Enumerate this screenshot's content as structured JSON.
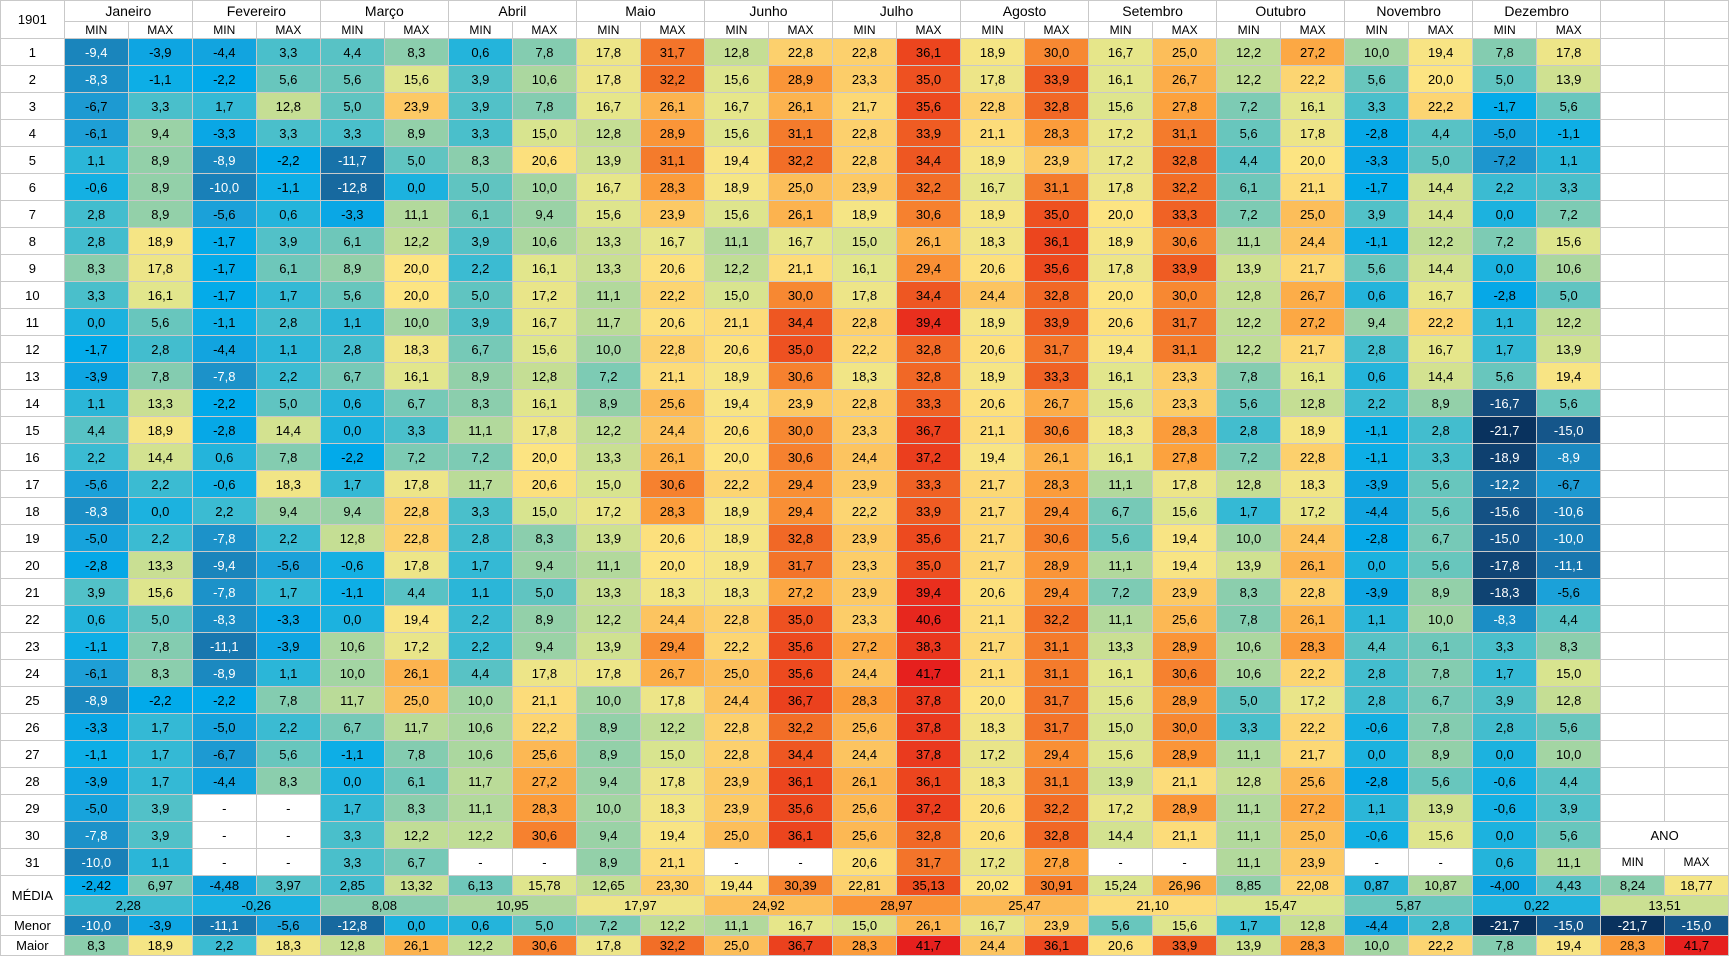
{
  "sheet": {
    "year_label": "1901",
    "months": [
      "Janeiro",
      "Fevereiro",
      "Março",
      "Abril",
      "Maio",
      "Junho",
      "Julho",
      "Agosto",
      "Setembro",
      "Outubro",
      "Novembro",
      "Dezembro"
    ],
    "min_label": "MIN",
    "max_label": "MAX",
    "day_numbers": [
      "1",
      "2",
      "3",
      "4",
      "5",
      "6",
      "7",
      "8",
      "9",
      "10",
      "11",
      "12",
      "13",
      "14",
      "15",
      "16",
      "17",
      "18",
      "19",
      "20",
      "21",
      "22",
      "23",
      "24",
      "25",
      "26",
      "27",
      "28",
      "29",
      "30",
      "31"
    ],
    "rows": [
      [
        "-9,4",
        "-3,9",
        "-4,4",
        "3,3",
        "4,4",
        "8,3",
        "0,6",
        "7,8",
        "17,8",
        "31,7",
        "12,8",
        "22,8",
        "22,8",
        "36,1",
        "18,9",
        "30,0",
        "16,7",
        "25,0",
        "12,2",
        "27,2",
        "10,0",
        "19,4",
        "7,8",
        "17,8"
      ],
      [
        "-8,3",
        "-1,1",
        "-2,2",
        "5,6",
        "5,6",
        "15,6",
        "3,9",
        "10,6",
        "17,8",
        "32,2",
        "15,6",
        "28,9",
        "23,3",
        "35,0",
        "17,8",
        "33,9",
        "16,1",
        "26,7",
        "12,2",
        "22,2",
        "5,6",
        "20,0",
        "5,0",
        "13,9"
      ],
      [
        "-6,7",
        "3,3",
        "1,7",
        "12,8",
        "5,0",
        "23,9",
        "3,9",
        "7,8",
        "16,7",
        "26,1",
        "16,7",
        "26,1",
        "21,7",
        "35,6",
        "22,8",
        "32,8",
        "15,6",
        "27,8",
        "7,2",
        "16,1",
        "3,3",
        "22,2",
        "-1,7",
        "5,6"
      ],
      [
        "-6,1",
        "9,4",
        "-3,3",
        "3,3",
        "3,3",
        "8,9",
        "3,3",
        "15,0",
        "12,8",
        "28,9",
        "15,6",
        "31,1",
        "22,8",
        "33,9",
        "21,1",
        "28,3",
        "17,2",
        "31,1",
        "5,6",
        "17,8",
        "-2,8",
        "4,4",
        "-5,0",
        "-1,1"
      ],
      [
        "1,1",
        "8,9",
        "-8,9",
        "-2,2",
        "-11,7",
        "5,0",
        "8,3",
        "20,6",
        "13,9",
        "31,1",
        "19,4",
        "32,2",
        "22,8",
        "34,4",
        "18,9",
        "23,9",
        "17,2",
        "32,8",
        "4,4",
        "20,0",
        "-3,3",
        "5,0",
        "-7,2",
        "1,1"
      ],
      [
        "-0,6",
        "8,9",
        "-10,0",
        "-1,1",
        "-12,8",
        "0,0",
        "5,0",
        "10,0",
        "16,7",
        "28,3",
        "18,9",
        "25,0",
        "23,9",
        "32,2",
        "16,7",
        "31,1",
        "17,8",
        "32,2",
        "6,1",
        "21,1",
        "-1,7",
        "14,4",
        "2,2",
        "3,3"
      ],
      [
        "2,8",
        "8,9",
        "-5,6",
        "0,6",
        "-3,3",
        "11,1",
        "6,1",
        "9,4",
        "15,6",
        "23,9",
        "15,6",
        "26,1",
        "18,9",
        "30,6",
        "18,9",
        "35,0",
        "20,0",
        "33,3",
        "7,2",
        "25,0",
        "3,9",
        "14,4",
        "0,0",
        "7,2"
      ],
      [
        "2,8",
        "18,9",
        "-1,7",
        "3,9",
        "6,1",
        "12,2",
        "3,9",
        "10,6",
        "13,3",
        "16,7",
        "11,1",
        "16,7",
        "15,0",
        "26,1",
        "18,3",
        "36,1",
        "18,9",
        "30,6",
        "11,1",
        "24,4",
        "-1,1",
        "12,2",
        "7,2",
        "15,6"
      ],
      [
        "8,3",
        "17,8",
        "-1,7",
        "6,1",
        "8,9",
        "20,0",
        "2,2",
        "16,1",
        "13,3",
        "20,6",
        "12,2",
        "21,1",
        "16,1",
        "29,4",
        "20,6",
        "35,6",
        "17,8",
        "33,9",
        "13,9",
        "21,7",
        "5,6",
        "14,4",
        "0,0",
        "10,6"
      ],
      [
        "3,3",
        "16,1",
        "-1,7",
        "1,7",
        "5,6",
        "20,0",
        "5,0",
        "17,2",
        "11,1",
        "22,2",
        "15,0",
        "30,0",
        "17,8",
        "34,4",
        "24,4",
        "32,8",
        "20,0",
        "30,0",
        "12,8",
        "26,7",
        "0,6",
        "16,7",
        "-2,8",
        "5,0"
      ],
      [
        "0,0",
        "5,6",
        "-1,1",
        "2,8",
        "1,1",
        "10,0",
        "3,9",
        "16,7",
        "11,7",
        "20,6",
        "21,1",
        "34,4",
        "22,8",
        "39,4",
        "18,9",
        "33,9",
        "20,6",
        "31,7",
        "12,2",
        "27,2",
        "9,4",
        "22,2",
        "1,1",
        "12,2"
      ],
      [
        "-1,7",
        "2,8",
        "-4,4",
        "1,1",
        "2,8",
        "18,3",
        "6,7",
        "15,6",
        "10,0",
        "22,8",
        "20,6",
        "35,0",
        "22,2",
        "32,8",
        "20,6",
        "31,7",
        "19,4",
        "31,1",
        "12,2",
        "21,7",
        "2,8",
        "16,7",
        "1,7",
        "13,9"
      ],
      [
        "-3,9",
        "7,8",
        "-7,8",
        "2,2",
        "6,7",
        "16,1",
        "8,9",
        "12,8",
        "7,2",
        "21,1",
        "18,9",
        "30,6",
        "18,3",
        "32,8",
        "18,9",
        "33,3",
        "16,1",
        "23,3",
        "7,8",
        "16,1",
        "0,6",
        "14,4",
        "5,6",
        "19,4"
      ],
      [
        "1,1",
        "13,3",
        "-2,2",
        "5,0",
        "0,6",
        "6,7",
        "8,3",
        "16,1",
        "8,9",
        "25,6",
        "19,4",
        "23,9",
        "22,8",
        "33,3",
        "20,6",
        "26,7",
        "15,6",
        "23,3",
        "5,6",
        "12,8",
        "2,2",
        "8,9",
        "-16,7",
        "5,6"
      ],
      [
        "4,4",
        "18,9",
        "-2,8",
        "14,4",
        "0,0",
        "3,3",
        "11,1",
        "17,8",
        "12,2",
        "24,4",
        "20,6",
        "30,0",
        "23,3",
        "36,7",
        "21,1",
        "30,6",
        "18,3",
        "28,3",
        "2,8",
        "18,9",
        "-1,1",
        "2,8",
        "-21,7",
        "-15,0"
      ],
      [
        "2,2",
        "14,4",
        "0,6",
        "7,8",
        "-2,2",
        "7,2",
        "7,2",
        "20,0",
        "13,3",
        "26,1",
        "20,0",
        "30,6",
        "24,4",
        "37,2",
        "19,4",
        "26,1",
        "16,1",
        "27,8",
        "7,2",
        "22,8",
        "-1,1",
        "3,3",
        "-18,9",
        "-8,9"
      ],
      [
        "-5,6",
        "2,2",
        "-0,6",
        "18,3",
        "1,7",
        "17,8",
        "11,7",
        "20,6",
        "15,0",
        "30,6",
        "22,2",
        "29,4",
        "23,9",
        "33,3",
        "21,7",
        "28,3",
        "11,1",
        "17,8",
        "12,8",
        "18,3",
        "-3,9",
        "5,6",
        "-12,2",
        "-6,7"
      ],
      [
        "-8,3",
        "0,0",
        "2,2",
        "9,4",
        "9,4",
        "22,8",
        "3,3",
        "15,0",
        "17,2",
        "28,3",
        "18,9",
        "29,4",
        "22,2",
        "33,9",
        "21,7",
        "29,4",
        "6,7",
        "15,6",
        "1,7",
        "17,2",
        "-4,4",
        "5,6",
        "-15,6",
        "-10,6"
      ],
      [
        "-5,0",
        "2,2",
        "-7,8",
        "2,2",
        "12,8",
        "22,8",
        "2,8",
        "8,3",
        "13,9",
        "20,6",
        "18,9",
        "32,8",
        "23,9",
        "35,6",
        "21,7",
        "30,6",
        "5,6",
        "19,4",
        "10,0",
        "24,4",
        "-2,8",
        "6,7",
        "-15,0",
        "-10,0"
      ],
      [
        "-2,8",
        "13,3",
        "-9,4",
        "-5,6",
        "-0,6",
        "17,8",
        "1,7",
        "9,4",
        "11,1",
        "20,0",
        "18,9",
        "31,7",
        "23,3",
        "35,0",
        "21,7",
        "28,9",
        "11,1",
        "19,4",
        "13,9",
        "26,1",
        "0,0",
        "5,6",
        "-17,8",
        "-11,1"
      ],
      [
        "3,9",
        "15,6",
        "-7,8",
        "1,7",
        "-1,1",
        "4,4",
        "1,1",
        "5,0",
        "13,3",
        "18,3",
        "18,3",
        "27,2",
        "23,9",
        "39,4",
        "20,6",
        "29,4",
        "7,2",
        "23,9",
        "8,3",
        "22,8",
        "-3,9",
        "8,9",
        "-18,3",
        "-5,6"
      ],
      [
        "0,6",
        "5,0",
        "-8,3",
        "-3,3",
        "0,0",
        "19,4",
        "2,2",
        "8,9",
        "12,2",
        "24,4",
        "22,8",
        "35,0",
        "23,3",
        "40,6",
        "21,1",
        "32,2",
        "11,1",
        "25,6",
        "7,8",
        "26,1",
        "1,1",
        "10,0",
        "-8,3",
        "4,4"
      ],
      [
        "-1,1",
        "7,8",
        "-11,1",
        "-3,9",
        "10,6",
        "17,2",
        "2,2",
        "9,4",
        "13,9",
        "29,4",
        "22,2",
        "35,6",
        "27,2",
        "38,3",
        "21,7",
        "31,1",
        "13,3",
        "28,9",
        "10,6",
        "28,3",
        "4,4",
        "6,1",
        "3,3",
        "8,3"
      ],
      [
        "-6,1",
        "8,3",
        "-8,9",
        "1,1",
        "10,0",
        "26,1",
        "4,4",
        "17,8",
        "17,8",
        "26,7",
        "25,0",
        "35,6",
        "24,4",
        "41,7",
        "21,1",
        "31,1",
        "16,1",
        "30,6",
        "10,6",
        "22,2",
        "2,8",
        "7,8",
        "1,7",
        "15,0"
      ],
      [
        "-8,9",
        "-2,2",
        "-2,2",
        "7,8",
        "11,7",
        "25,0",
        "10,0",
        "21,1",
        "10,0",
        "17,8",
        "24,4",
        "36,7",
        "28,3",
        "37,8",
        "20,0",
        "31,7",
        "15,6",
        "28,9",
        "5,0",
        "17,2",
        "2,8",
        "6,7",
        "3,9",
        "12,8"
      ],
      [
        "-3,3",
        "1,7",
        "-5,0",
        "2,2",
        "6,7",
        "11,7",
        "10,6",
        "22,2",
        "8,9",
        "12,2",
        "22,8",
        "32,2",
        "25,6",
        "37,8",
        "18,3",
        "31,7",
        "15,0",
        "30,0",
        "3,3",
        "22,2",
        "-0,6",
        "7,8",
        "2,8",
        "5,6"
      ],
      [
        "-1,1",
        "1,7",
        "-6,7",
        "5,6",
        "-1,1",
        "7,8",
        "10,6",
        "25,6",
        "8,9",
        "15,0",
        "22,8",
        "34,4",
        "24,4",
        "37,8",
        "17,2",
        "29,4",
        "15,6",
        "28,9",
        "11,1",
        "21,7",
        "0,0",
        "8,9",
        "0,0",
        "10,0"
      ],
      [
        "-3,9",
        "1,7",
        "-4,4",
        "8,3",
        "0,0",
        "6,1",
        "11,7",
        "27,2",
        "9,4",
        "17,8",
        "23,9",
        "36,1",
        "26,1",
        "36,1",
        "18,3",
        "31,1",
        "13,9",
        "21,1",
        "12,8",
        "25,6",
        "-2,8",
        "5,6",
        "-0,6",
        "4,4"
      ],
      [
        "-5,0",
        "3,9",
        "-",
        "-",
        "1,7",
        "8,3",
        "11,1",
        "28,3",
        "10,0",
        "18,3",
        "23,9",
        "35,6",
        "25,6",
        "37,2",
        "20,6",
        "32,2",
        "17,2",
        "28,9",
        "11,1",
        "27,2",
        "1,1",
        "13,9",
        "-0,6",
        "3,9"
      ],
      [
        "-7,8",
        "3,9",
        "-",
        "-",
        "3,3",
        "12,2",
        "12,2",
        "30,6",
        "9,4",
        "19,4",
        "25,0",
        "36,1",
        "25,6",
        "32,8",
        "20,6",
        "32,8",
        "14,4",
        "21,1",
        "11,1",
        "25,0",
        "-0,6",
        "15,6",
        "0,0",
        "5,6"
      ],
      [
        "-10,0",
        "1,1",
        "-",
        "-",
        "3,3",
        "6,7",
        "-",
        "-",
        "8,9",
        "21,1",
        "-",
        "-",
        "20,6",
        "31,7",
        "17,2",
        "27,8",
        "-",
        "-",
        "11,1",
        "23,9",
        "-",
        "-",
        "0,6",
        "11,1"
      ]
    ],
    "media_label": "MÉDIA",
    "media_minmax": [
      "-2,42",
      "6,97",
      "-4,48",
      "3,97",
      "2,85",
      "13,32",
      "6,13",
      "15,78",
      "12,65",
      "23,30",
      "19,44",
      "30,39",
      "22,81",
      "35,13",
      "20,02",
      "30,91",
      "15,24",
      "26,96",
      "8,85",
      "22,08",
      "0,87",
      "10,87",
      "-4,00",
      "4,43"
    ],
    "media_month": [
      "2,28",
      "-0,26",
      "8,08",
      "10,95",
      "17,97",
      "24,92",
      "28,97",
      "25,47",
      "21,10",
      "15,47",
      "5,87",
      "0,22"
    ],
    "menor_label": "Menor",
    "menor": [
      "-10,0",
      "-3,9",
      "-11,1",
      "-5,6",
      "-12,8",
      "0,0",
      "0,6",
      "5,0",
      "7,2",
      "12,2",
      "11,1",
      "16,7",
      "15,0",
      "26,1",
      "16,7",
      "23,9",
      "5,6",
      "15,6",
      "1,7",
      "12,8",
      "-4,4",
      "2,8",
      "-21,7",
      "-15,0"
    ],
    "maior_label": "Maior",
    "maior": [
      "8,3",
      "18,9",
      "2,2",
      "18,3",
      "12,8",
      "26,1",
      "12,2",
      "30,6",
      "17,8",
      "32,2",
      "25,0",
      "36,7",
      "28,3",
      "41,7",
      "24,4",
      "36,1",
      "20,6",
      "33,9",
      "13,9",
      "28,3",
      "10,0",
      "22,2",
      "7,8",
      "19,4"
    ],
    "ano": {
      "label": "ANO",
      "min_label": "MIN",
      "max_label": "MAX",
      "media_min": "8,24",
      "media_max": "18,77",
      "media": "13,51",
      "menor_min": "-21,7",
      "menor_max": "-15,0",
      "maior_min": "28,3",
      "maior_max": "41,7"
    }
  }
}
